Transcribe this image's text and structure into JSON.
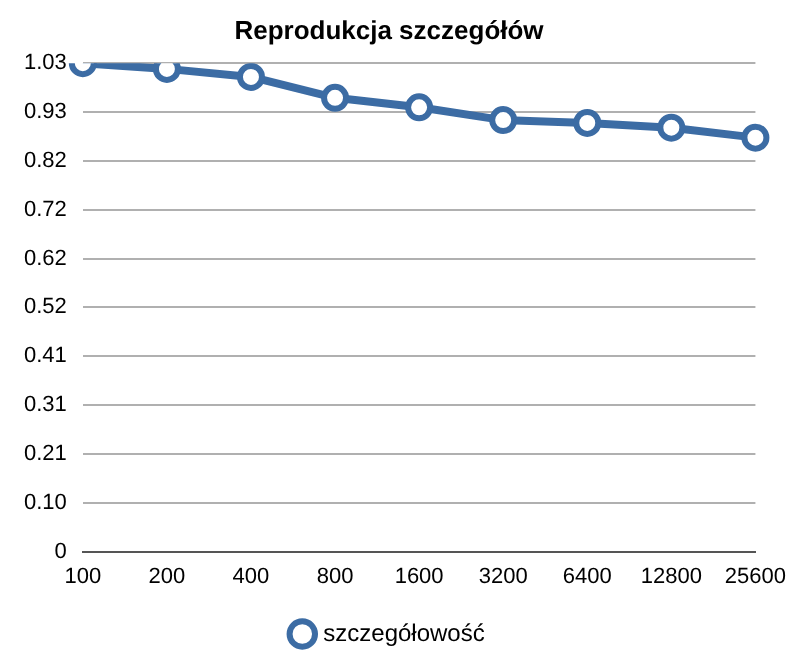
{
  "chart_data": {
    "type": "line",
    "title": "Reprodukcja szczegółów",
    "categories": [
      "100",
      "200",
      "400",
      "800",
      "1600",
      "3200",
      "6400",
      "12800",
      "25600"
    ],
    "series": [
      {
        "name": "szczegółowość",
        "color": "#3c6ca4",
        "values": [
          1.03,
          1.018,
          1.001,
          0.957,
          0.937,
          0.91,
          0.904,
          0.894,
          0.873
        ]
      }
    ],
    "ylim": [
      0,
      1.03
    ],
    "yticks": [
      0,
      {
        "value": 0.103,
        "label": "0.10"
      },
      {
        "value": 0.206,
        "label": "0.21"
      },
      {
        "value": 0.309,
        "label": "0.31"
      },
      {
        "value": 0.412,
        "label": "0.41"
      },
      {
        "value": 0.515,
        "label": "0.52"
      },
      {
        "value": 0.618,
        "label": "0.62"
      },
      {
        "value": 0.721,
        "label": "0.72"
      },
      {
        "value": 0.824,
        "label": "0.82"
      },
      {
        "value": 0.927,
        "label": "0.93"
      },
      1.03
    ],
    "grid": "y",
    "legend": "bottom",
    "marker": "circle",
    "line_style": "solid"
  }
}
